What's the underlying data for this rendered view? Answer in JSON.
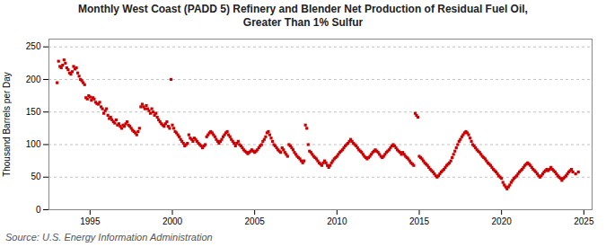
{
  "chart_data": {
    "type": "scatter",
    "title": "Monthly West Coast (PADD 5) Refinery and Blender Net Production of Residual Fuel Oil,\nGreater Than 1% Sulfur",
    "ylabel": "Thousand Barrels per Day",
    "annotations": [
      "Source: U.S. Energy Information Administration"
    ],
    "color": "#CC0000",
    "marker": "square",
    "grid": true,
    "xlim": [
      1992.5,
      2025.5
    ],
    "xticks": [
      1995,
      2000,
      2005,
      2010,
      2015,
      2020,
      2025
    ],
    "ylim": [
      0,
      262
    ],
    "yticks": [
      0,
      50,
      100,
      150,
      200,
      250
    ],
    "x": [
      1993.0,
      1993.083,
      1993.167,
      1993.25,
      1993.333,
      1993.417,
      1993.5,
      1993.583,
      1993.667,
      1993.75,
      1993.833,
      1993.917,
      1994.0,
      1994.083,
      1994.167,
      1994.25,
      1994.333,
      1994.417,
      1994.5,
      1994.583,
      1994.667,
      1994.75,
      1994.833,
      1994.917,
      1995.0,
      1995.083,
      1995.167,
      1995.25,
      1995.333,
      1995.417,
      1995.5,
      1995.583,
      1995.667,
      1995.75,
      1995.833,
      1995.917,
      1996.0,
      1996.083,
      1996.167,
      1996.25,
      1996.333,
      1996.417,
      1996.5,
      1996.583,
      1996.667,
      1996.75,
      1996.833,
      1996.917,
      1997.0,
      1997.083,
      1997.167,
      1997.25,
      1997.333,
      1997.417,
      1997.5,
      1997.583,
      1997.667,
      1997.75,
      1997.833,
      1997.917,
      1998.0,
      1998.083,
      1998.167,
      1998.25,
      1998.333,
      1998.417,
      1998.5,
      1998.583,
      1998.667,
      1998.75,
      1998.833,
      1998.917,
      1999.0,
      1999.083,
      1999.167,
      1999.25,
      1999.333,
      1999.417,
      1999.5,
      1999.583,
      1999.667,
      1999.75,
      1999.833,
      1999.917,
      2000.0,
      2000.083,
      2000.167,
      2000.25,
      2000.333,
      2000.417,
      2000.5,
      2000.583,
      2000.667,
      2000.75,
      2000.833,
      2000.917,
      2001.0,
      2001.083,
      2001.167,
      2001.25,
      2001.333,
      2001.417,
      2001.5,
      2001.583,
      2001.667,
      2001.75,
      2001.833,
      2001.917,
      2002.0,
      2002.083,
      2002.167,
      2002.25,
      2002.333,
      2002.417,
      2002.5,
      2002.583,
      2002.667,
      2002.75,
      2002.833,
      2002.917,
      2003.0,
      2003.083,
      2003.167,
      2003.25,
      2003.333,
      2003.417,
      2003.5,
      2003.583,
      2003.667,
      2003.75,
      2003.833,
      2003.917,
      2004.0,
      2004.083,
      2004.167,
      2004.25,
      2004.333,
      2004.417,
      2004.5,
      2004.583,
      2004.667,
      2004.75,
      2004.833,
      2004.917,
      2005.0,
      2005.083,
      2005.167,
      2005.25,
      2005.333,
      2005.417,
      2005.5,
      2005.583,
      2005.667,
      2005.75,
      2005.833,
      2005.917,
      2006.0,
      2006.083,
      2006.167,
      2006.25,
      2006.333,
      2006.417,
      2006.5,
      2006.583,
      2006.667,
      2006.75,
      2006.833,
      2006.917,
      2007.0,
      2007.083,
      2007.167,
      2007.25,
      2007.333,
      2007.417,
      2007.5,
      2007.583,
      2007.667,
      2007.75,
      2007.833,
      2007.917,
      2008.0,
      2008.083,
      2008.167,
      2008.25,
      2008.333,
      2008.417,
      2008.5,
      2008.583,
      2008.667,
      2008.75,
      2008.833,
      2008.917,
      2009.0,
      2009.083,
      2009.167,
      2009.25,
      2009.333,
      2009.417,
      2009.5,
      2009.583,
      2009.667,
      2009.75,
      2009.833,
      2009.917,
      2010.0,
      2010.083,
      2010.167,
      2010.25,
      2010.333,
      2010.417,
      2010.5,
      2010.583,
      2010.667,
      2010.75,
      2010.833,
      2010.917,
      2011.0,
      2011.083,
      2011.167,
      2011.25,
      2011.333,
      2011.417,
      2011.5,
      2011.583,
      2011.667,
      2011.75,
      2011.833,
      2011.917,
      2012.0,
      2012.083,
      2012.167,
      2012.25,
      2012.333,
      2012.417,
      2012.5,
      2012.583,
      2012.667,
      2012.75,
      2012.833,
      2012.917,
      2013.0,
      2013.083,
      2013.167,
      2013.25,
      2013.333,
      2013.417,
      2013.5,
      2013.583,
      2013.667,
      2013.75,
      2013.833,
      2013.917,
      2014.0,
      2014.083,
      2014.167,
      2014.25,
      2014.333,
      2014.417,
      2014.5,
      2014.583,
      2014.667,
      2014.75,
      2014.833,
      2014.917,
      2015.0,
      2015.083,
      2015.167,
      2015.25,
      2015.333,
      2015.417,
      2015.5,
      2015.583,
      2015.667,
      2015.75,
      2015.833,
      2015.917,
      2016.0,
      2016.083,
      2016.167,
      2016.25,
      2016.333,
      2016.417,
      2016.5,
      2016.583,
      2016.667,
      2016.75,
      2016.833,
      2016.917,
      2017.0,
      2017.083,
      2017.167,
      2017.25,
      2017.333,
      2017.417,
      2017.5,
      2017.583,
      2017.667,
      2017.75,
      2017.833,
      2017.917,
      2018.0,
      2018.083,
      2018.167,
      2018.25,
      2018.333,
      2018.417,
      2018.5,
      2018.583,
      2018.667,
      2018.75,
      2018.833,
      2018.917,
      2019.0,
      2019.083,
      2019.167,
      2019.25,
      2019.333,
      2019.417,
      2019.5,
      2019.583,
      2019.667,
      2019.75,
      2019.833,
      2019.917,
      2020.0,
      2020.083,
      2020.167,
      2020.25,
      2020.333,
      2020.417,
      2020.5,
      2020.583,
      2020.667,
      2020.75,
      2020.833,
      2020.917,
      2021.0,
      2021.083,
      2021.167,
      2021.25,
      2021.333,
      2021.417,
      2021.5,
      2021.583,
      2021.667,
      2021.75,
      2021.833,
      2021.917,
      2022.0,
      2022.083,
      2022.167,
      2022.25,
      2022.333,
      2022.417,
      2022.5,
      2022.583,
      2022.667,
      2022.75,
      2022.833,
      2022.917,
      2023.0,
      2023.083,
      2023.167,
      2023.25,
      2023.333,
      2023.417,
      2023.5,
      2023.583,
      2023.667,
      2023.75,
      2023.833,
      2023.917,
      2024.0,
      2024.083,
      2024.167,
      2024.25,
      2024.333,
      2024.5,
      2024.667
    ],
    "values": [
      195,
      228,
      220,
      218,
      222,
      230,
      225,
      218,
      215,
      210,
      208,
      212,
      220,
      216,
      218,
      210,
      205,
      200,
      198,
      195,
      192,
      172,
      170,
      175,
      173,
      168,
      172,
      170,
      165,
      163,
      162,
      165,
      158,
      155,
      148,
      152,
      155,
      145,
      140,
      142,
      138,
      135,
      133,
      138,
      130,
      132,
      128,
      125,
      130,
      128,
      132,
      135,
      130,
      128,
      125,
      122,
      120,
      118,
      115,
      120,
      125,
      158,
      162,
      158,
      155,
      160,
      155,
      152,
      148,
      155,
      150,
      145,
      148,
      142,
      138,
      135,
      132,
      130,
      128,
      132,
      135,
      128,
      125,
      200,
      130,
      125,
      120,
      118,
      115,
      112,
      108,
      105,
      102,
      98,
      100,
      102,
      115,
      110,
      108,
      105,
      110,
      108,
      105,
      102,
      100,
      98,
      95,
      98,
      100,
      112,
      115,
      118,
      120,
      118,
      115,
      112,
      108,
      105,
      102,
      105,
      108,
      112,
      115,
      118,
      120,
      115,
      112,
      108,
      105,
      102,
      98,
      102,
      105,
      100,
      98,
      95,
      92,
      90,
      88,
      86,
      88,
      90,
      92,
      90,
      88,
      90,
      92,
      95,
      98,
      100,
      105,
      108,
      112,
      118,
      120,
      115,
      110,
      105,
      100,
      98,
      95,
      92,
      90,
      88,
      95,
      92,
      88,
      85,
      82,
      100,
      98,
      95,
      92,
      88,
      85,
      82,
      80,
      78,
      75,
      72,
      75,
      130,
      125,
      100,
      90,
      88,
      85,
      82,
      80,
      78,
      75,
      72,
      70,
      68,
      72,
      75,
      72,
      68,
      65,
      68,
      72,
      75,
      78,
      80,
      82,
      85,
      88,
      90,
      92,
      95,
      98,
      100,
      102,
      105,
      108,
      105,
      102,
      100,
      98,
      95,
      92,
      90,
      88,
      85,
      82,
      80,
      78,
      80,
      82,
      85,
      88,
      90,
      92,
      90,
      88,
      85,
      82,
      80,
      82,
      85,
      88,
      90,
      92,
      95,
      98,
      100,
      98,
      95,
      92,
      90,
      88,
      85,
      88,
      85,
      82,
      80,
      78,
      75,
      72,
      70,
      68,
      148,
      145,
      142,
      82,
      80,
      78,
      75,
      72,
      70,
      68,
      65,
      62,
      60,
      58,
      55,
      52,
      50,
      52,
      55,
      58,
      60,
      62,
      65,
      68,
      70,
      72,
      75,
      80,
      85,
      90,
      95,
      100,
      105,
      108,
      112,
      115,
      118,
      120,
      118,
      115,
      110,
      105,
      100,
      98,
      95,
      92,
      90,
      88,
      85,
      82,
      80,
      78,
      75,
      72,
      70,
      68,
      65,
      62,
      60,
      58,
      55,
      52,
      50,
      48,
      42,
      38,
      35,
      32,
      35,
      38,
      42,
      45,
      48,
      50,
      52,
      55,
      58,
      60,
      62,
      65,
      68,
      70,
      72,
      70,
      68,
      65,
      62,
      60,
      58,
      55,
      52,
      50,
      52,
      55,
      58,
      60,
      62,
      60,
      62,
      65,
      62,
      60,
      58,
      55,
      52,
      50,
      48,
      45,
      48,
      50,
      52,
      55,
      58,
      60,
      62,
      58,
      55,
      58
    ]
  }
}
